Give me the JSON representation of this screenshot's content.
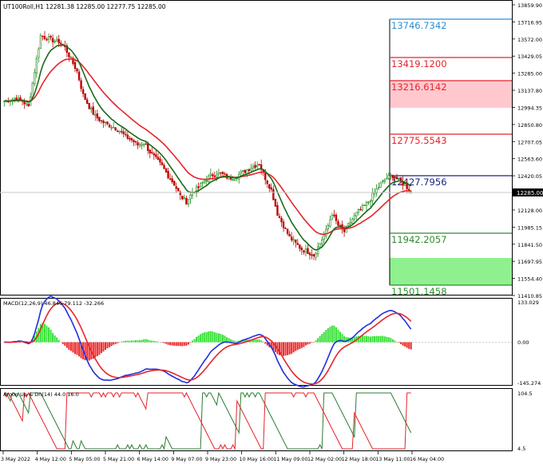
{
  "symbol_info": "UT100Roll,H1  12281.38 12285.00 12277.75 12285.00",
  "price_axis": [
    "13859.90",
    "13716.95",
    "13572.00",
    "13429.05",
    "13285.00",
    "13137.80",
    "12994.35",
    "12850.80",
    "12707.05",
    "12563.60",
    "12420.05",
    "12285.00",
    "12128.00",
    "11985.15",
    "11841.50",
    "11697.95",
    "11554.40",
    "11410.85"
  ],
  "current_price": "12285.00",
  "levels": [
    {
      "label": "13746.7342",
      "color": "#2a8fd6"
    },
    {
      "label": "13419.1200",
      "color": "#e8232a"
    },
    {
      "label": "13216.6142",
      "color": "#e8232a"
    },
    {
      "label": "12775.5543",
      "color": "#e8232a"
    },
    {
      "label": "12427.7956",
      "color": "#1a237e"
    },
    {
      "label": "11942.2057",
      "color": "#2e8b2e"
    },
    {
      "label": "11501.1458",
      "color": "#2e8b2e"
    }
  ],
  "macd": {
    "label": "MACD(12,26,9) 46.846 79.112 -32.266",
    "axis": [
      "133.029",
      "0.00",
      "-145.274"
    ]
  },
  "aroon": {
    "label": "Aroon Up & Dn(14) 44.0 16.0",
    "axis": [
      "104.5",
      "4.5"
    ]
  },
  "time_axis": [
    "3 May 2022",
    "4 May 12:00",
    "5 May 05:00",
    "5 May 21:00",
    "6 May 14:00",
    "9 May 07:00",
    "9 May 23:00",
    "10 May 16:00",
    "11 May 09:00",
    "12 May 02:00",
    "12 May 18:00",
    "13 May 11:00",
    "16 May 04:00"
  ],
  "colors": {
    "bull": "#1b8a1b",
    "bear": "#c00000",
    "ma_fast": "#1a6b1a",
    "ma_slow": "#e8232a",
    "macd_line": "#1f2fe0",
    "signal_line": "#e8232a",
    "hist_pos": "#39e139",
    "hist_neg": "#ef2b2b",
    "aroon_up": "#2e7d32",
    "aroon_dn": "#e8232a",
    "zone_red": "#ffc8cf",
    "zone_green": "#8ef08e"
  },
  "chart_data": [
    {
      "type": "candlestick",
      "title": "UT100Roll,H1",
      "close_path": [
        13050,
        13060,
        13070,
        13050,
        13000,
        13300,
        13600,
        13580,
        13560,
        13550,
        13500,
        13400,
        13300,
        13100,
        13000,
        12920,
        12880,
        12850,
        12830,
        12800,
        12750,
        12720,
        12680,
        12700,
        12620,
        12560,
        12500,
        12420,
        12350,
        12250,
        12200,
        12280,
        12320,
        12380,
        12420,
        12440,
        12430,
        12400,
        12410,
        12440,
        12470,
        12500,
        12520,
        12400,
        12300,
        12100,
        12000,
        11900,
        11850,
        11800,
        11780,
        11750,
        11850,
        11950,
        12100,
        12000,
        11950,
        12030,
        12100,
        12150,
        12200,
        12280,
        12350,
        12400,
        12420,
        12380,
        12340,
        12285
      ],
      "ylim": [
        11410.85,
        13859.9
      ]
    },
    {
      "type": "line",
      "title": "MACD(12,26,9) 46.846 79.112 -32.266",
      "ylim": [
        -145.274,
        133.029
      ]
    },
    {
      "type": "line",
      "title": "Aroon Up & Dn(14) 44.0 16.0",
      "ylim": [
        4.5,
        104.5
      ]
    }
  ]
}
